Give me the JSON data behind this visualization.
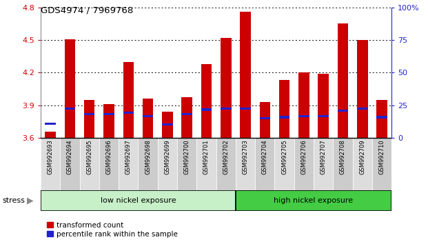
{
  "title": "GDS4974 / 7969768",
  "samples": [
    "GSM992693",
    "GSM992694",
    "GSM992695",
    "GSM992696",
    "GSM992697",
    "GSM992698",
    "GSM992699",
    "GSM992700",
    "GSM992701",
    "GSM992702",
    "GSM992703",
    "GSM992704",
    "GSM992705",
    "GSM992706",
    "GSM992707",
    "GSM992708",
    "GSM992709",
    "GSM992710"
  ],
  "bar_values": [
    3.655,
    4.503,
    3.95,
    3.912,
    4.3,
    3.96,
    3.838,
    3.975,
    4.28,
    4.52,
    4.76,
    3.93,
    4.13,
    4.2,
    4.19,
    4.65,
    4.5,
    3.95
  ],
  "percentile_values": [
    3.73,
    3.872,
    3.82,
    3.82,
    3.832,
    3.8,
    3.722,
    3.82,
    3.86,
    3.872,
    3.872,
    3.78,
    3.79,
    3.8,
    3.8,
    3.85,
    3.872,
    3.79
  ],
  "bar_color": "#cc0000",
  "percentile_color": "#2222cc",
  "ymin": 3.6,
  "ymax": 4.8,
  "yticks_left": [
    3.6,
    3.9,
    4.2,
    4.5,
    4.8
  ],
  "yticks_right": [
    0,
    25,
    50,
    75,
    100
  ],
  "ytick_right_labels": [
    "0",
    "25",
    "50",
    "75",
    "100%"
  ],
  "group_labels": [
    "low nickel exposure",
    "high nickel exposure"
  ],
  "group_low_count": 10,
  "group_high_count": 8,
  "group_low_color": "#c8f0c8",
  "group_high_color": "#44cc44",
  "factor_label": "stress",
  "legend_labels": [
    "transformed count",
    "percentile rank within the sample"
  ],
  "bar_width": 0.55,
  "cell_color_odd": "#cccccc",
  "cell_color_even": "#dddddd",
  "cell_border_color": "white"
}
